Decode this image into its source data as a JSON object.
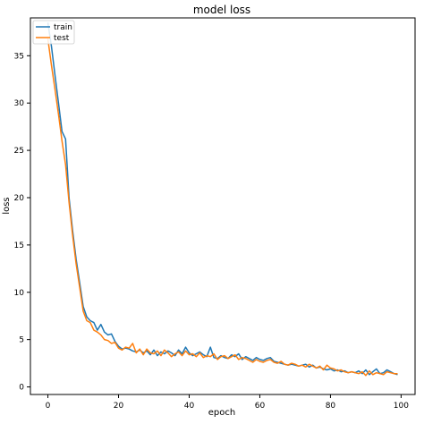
{
  "chart_data": {
    "type": "line",
    "title": "model loss",
    "xlabel": "epoch",
    "ylabel": "loss",
    "xlim": [
      -4.95,
      103.95
    ],
    "ylim": [
      -0.8,
      39.0
    ],
    "xticks": [
      0,
      20,
      40,
      60,
      80,
      100
    ],
    "yticks": [
      0,
      5,
      10,
      15,
      20,
      25,
      30,
      35
    ],
    "grid": false,
    "legend_position": "top-left",
    "series": [
      {
        "name": "train",
        "color": "#1f77b4",
        "x": [
          0,
          1,
          2,
          3,
          4,
          5,
          6,
          7,
          8,
          9,
          10,
          11,
          12,
          13,
          14,
          15,
          16,
          17,
          18,
          19,
          20,
          21,
          22,
          23,
          24,
          25,
          26,
          27,
          28,
          29,
          30,
          31,
          32,
          33,
          34,
          35,
          36,
          37,
          38,
          39,
          40,
          41,
          42,
          43,
          44,
          45,
          46,
          47,
          48,
          49,
          50,
          51,
          52,
          53,
          54,
          55,
          56,
          57,
          58,
          59,
          60,
          61,
          62,
          63,
          64,
          65,
          66,
          67,
          68,
          69,
          70,
          71,
          72,
          73,
          74,
          75,
          76,
          77,
          78,
          79,
          80,
          81,
          82,
          83,
          84,
          85,
          86,
          87,
          88,
          89,
          90,
          91,
          92,
          93,
          94,
          95,
          96,
          97,
          98,
          99
        ],
        "y": [
          38.5,
          36.0,
          33.0,
          30.0,
          27.0,
          26.2,
          20.0,
          16.5,
          13.5,
          11.0,
          8.5,
          7.4,
          7.0,
          6.8,
          6.0,
          6.6,
          5.8,
          5.5,
          5.6,
          4.8,
          4.3,
          4.0,
          4.1,
          4.0,
          3.8,
          3.7,
          3.9,
          3.6,
          3.8,
          3.4,
          3.9,
          3.3,
          3.7,
          3.5,
          3.8,
          3.6,
          3.3,
          3.9,
          3.5,
          4.2,
          3.6,
          3.3,
          3.5,
          3.7,
          3.4,
          3.2,
          4.2,
          3.1,
          3.0,
          3.3,
          3.1,
          3.0,
          3.4,
          3.2,
          3.5,
          2.9,
          3.2,
          3.0,
          2.8,
          3.1,
          2.9,
          2.8,
          3.0,
          3.1,
          2.7,
          2.6,
          2.5,
          2.4,
          2.3,
          2.4,
          2.3,
          2.2,
          2.3,
          2.4,
          2.1,
          2.3,
          2.0,
          2.1,
          1.9,
          1.8,
          1.9,
          1.7,
          1.8,
          1.6,
          1.7,
          1.5,
          1.6,
          1.5,
          1.7,
          1.4,
          1.8,
          1.3,
          1.6,
          1.9,
          1.4,
          1.5,
          1.8,
          1.6,
          1.4,
          1.3
        ]
      },
      {
        "name": "test",
        "color": "#ff7f0e",
        "x": [
          0,
          1,
          2,
          3,
          4,
          5,
          6,
          7,
          8,
          9,
          10,
          11,
          12,
          13,
          14,
          15,
          16,
          17,
          18,
          19,
          20,
          21,
          22,
          23,
          24,
          25,
          26,
          27,
          28,
          29,
          30,
          31,
          32,
          33,
          34,
          35,
          36,
          37,
          38,
          39,
          40,
          41,
          42,
          43,
          44,
          45,
          46,
          47,
          48,
          49,
          50,
          51,
          52,
          53,
          54,
          55,
          56,
          57,
          58,
          59,
          60,
          61,
          62,
          63,
          64,
          65,
          66,
          67,
          68,
          69,
          70,
          71,
          72,
          73,
          74,
          75,
          76,
          77,
          78,
          79,
          80,
          81,
          82,
          83,
          84,
          85,
          86,
          87,
          88,
          89,
          90,
          91,
          92,
          93,
          94,
          95,
          96,
          97,
          98,
          99
        ],
        "y": [
          36.8,
          34.0,
          31.5,
          28.8,
          26.0,
          23.5,
          19.5,
          16.0,
          13.0,
          10.5,
          8.0,
          7.0,
          6.8,
          6.0,
          5.8,
          5.5,
          5.0,
          4.9,
          4.6,
          4.7,
          4.1,
          3.9,
          4.2,
          4.1,
          4.6,
          3.6,
          4.0,
          3.4,
          4.0,
          3.6,
          3.5,
          3.8,
          3.3,
          3.9,
          3.6,
          3.2,
          3.5,
          3.7,
          3.3,
          3.8,
          3.4,
          3.5,
          3.2,
          3.6,
          3.1,
          3.3,
          3.2,
          3.5,
          2.9,
          3.2,
          3.3,
          3.0,
          3.2,
          3.4,
          2.9,
          3.1,
          3.0,
          2.8,
          2.6,
          2.9,
          2.7,
          2.6,
          2.8,
          2.9,
          2.6,
          2.5,
          2.7,
          2.4,
          2.3,
          2.5,
          2.4,
          2.2,
          2.3,
          2.1,
          2.4,
          2.2,
          2.0,
          2.2,
          1.8,
          2.3,
          2.0,
          1.9,
          1.7,
          1.8,
          1.6,
          1.5,
          1.6,
          1.5,
          1.4,
          1.6,
          1.2,
          1.7,
          1.3,
          1.5,
          1.4,
          1.3,
          1.6,
          1.5,
          1.4,
          1.4
        ]
      }
    ]
  }
}
